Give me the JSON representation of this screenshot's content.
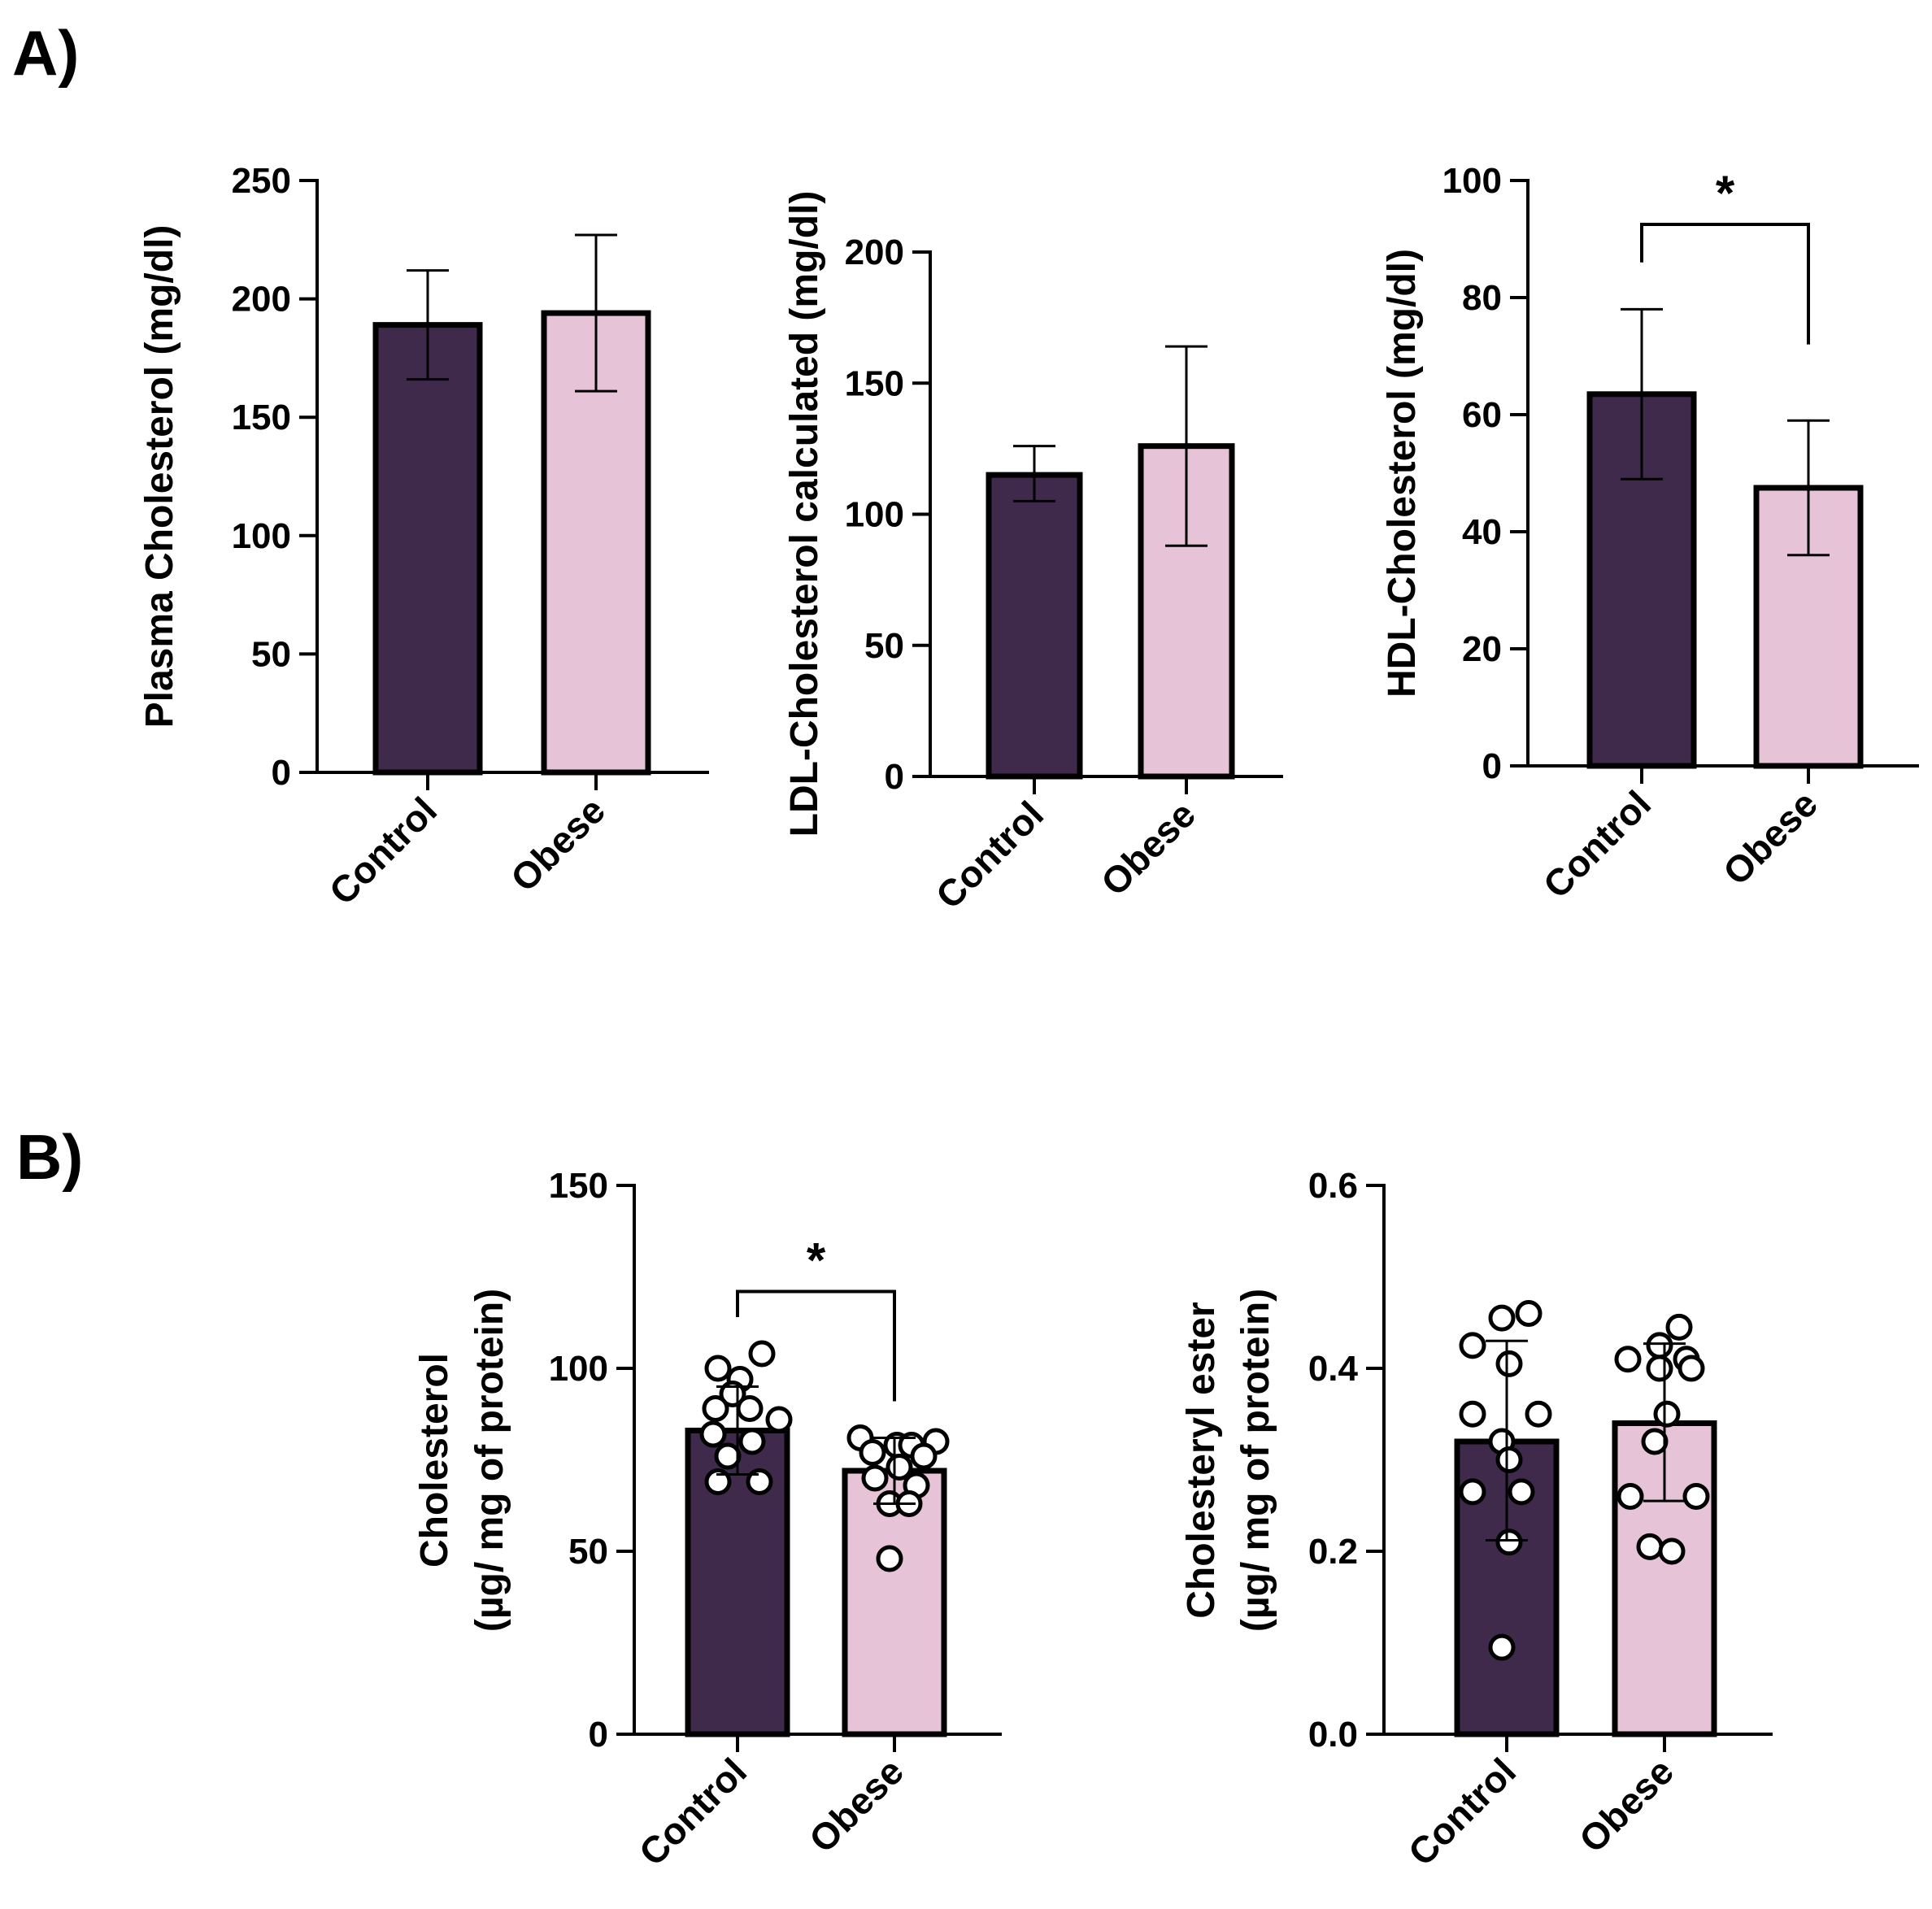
{
  "colors": {
    "control": "#3f2a4c",
    "obese": "#e6c3d6",
    "axis": "#000000",
    "point_fill": "#ffffff"
  },
  "chart_data": [
    {
      "id": "A1",
      "panel_label": "A)",
      "type": "bar",
      "categories": [
        "Control",
        "Obese"
      ],
      "values": [
        189,
        194
      ],
      "error_upper": [
        212,
        227
      ],
      "error_lower": [
        166,
        161
      ],
      "ylabel": "Plasma Cholesterol (mg/dl)",
      "ylim": [
        0,
        250
      ],
      "yticks": [
        0,
        50,
        100,
        150,
        200,
        250
      ],
      "ytick_labels": [
        "0",
        "50",
        "100",
        "150",
        "200",
        "250"
      ],
      "significance": null
    },
    {
      "id": "A2",
      "panel_label": "",
      "type": "bar",
      "categories": [
        "Control",
        "Obese"
      ],
      "values": [
        115,
        126
      ],
      "error_upper": [
        126,
        164
      ],
      "error_lower": [
        105,
        88
      ],
      "ylabel": "LDL-Cholesterol calculated (mg/dl)",
      "ylim": [
        0,
        200
      ],
      "yticks": [
        0,
        50,
        100,
        150,
        200
      ],
      "ytick_labels": [
        "0",
        "50",
        "100",
        "150",
        "200"
      ],
      "significance": null
    },
    {
      "id": "A3",
      "panel_label": "",
      "type": "bar",
      "categories": [
        "Control",
        "Obese"
      ],
      "values": [
        63.5,
        47.5
      ],
      "error_upper": [
        78,
        59
      ],
      "error_lower": [
        49,
        36
      ],
      "ylabel": "HDL-Cholesterol (mg/dl)",
      "ylim": [
        0,
        100
      ],
      "yticks": [
        0,
        20,
        40,
        60,
        80,
        100
      ],
      "ytick_labels": [
        "0",
        "20",
        "40",
        "60",
        "80",
        "100"
      ],
      "significance": {
        "symbol": "*",
        "y_level": 92.5,
        "left_drop_to": 86,
        "right_drop_to": 72
      }
    },
    {
      "id": "B1",
      "panel_label": "B)",
      "type": "bar",
      "categories": [
        "Control",
        "Obese"
      ],
      "values": [
        83,
        72
      ],
      "error_upper": [
        95,
        81
      ],
      "error_lower": [
        71,
        63
      ],
      "ylabel": "Cholesterol",
      "ylabel2": "(µg/ mg of protein)",
      "ylim": [
        0,
        150
      ],
      "yticks": [
        0,
        50,
        100,
        150
      ],
      "ytick_labels": [
        "0",
        "50",
        "100",
        "150"
      ],
      "points": [
        [
          [
            0.5,
            104
          ],
          [
            -0.4,
            100
          ],
          [
            0.05,
            97
          ],
          [
            -0.1,
            93
          ],
          [
            -0.45,
            89
          ],
          [
            0.25,
            89
          ],
          [
            0.85,
            86
          ],
          [
            -0.5,
            82
          ],
          [
            0.3,
            80
          ],
          [
            -0.2,
            76
          ],
          [
            -0.4,
            69
          ],
          [
            0.45,
            69
          ]
        ],
        [
          [
            -0.7,
            81
          ],
          [
            0.05,
            79
          ],
          [
            0.85,
            80
          ],
          [
            0.35,
            79
          ],
          [
            -0.45,
            77
          ],
          [
            0.6,
            76
          ],
          [
            0.1,
            73
          ],
          [
            -0.4,
            70
          ],
          [
            0.45,
            68
          ],
          [
            -0.1,
            63
          ],
          [
            0.3,
            63
          ],
          [
            -0.1,
            48
          ]
        ]
      ],
      "significance": {
        "symbol": "*",
        "y_level": 121,
        "left_drop_to": 114,
        "right_drop_to": 91
      }
    },
    {
      "id": "B2",
      "panel_label": "",
      "type": "bar",
      "categories": [
        "Control",
        "Obese"
      ],
      "values": [
        0.32,
        0.34
      ],
      "error_upper": [
        0.43,
        0.427
      ],
      "error_lower": [
        0.212,
        0.255
      ],
      "ylabel": "Cholesteryl ester",
      "ylabel2": "(µg/ mg of protein)",
      "ylim": [
        0,
        0.6
      ],
      "yticks": [
        0,
        0.2,
        0.4,
        0.6
      ],
      "ytick_labels": [
        "0.0",
        "0.2",
        "0.4",
        "0.6"
      ],
      "points": [
        [
          [
            -0.1,
            0.455
          ],
          [
            0.45,
            0.46
          ],
          [
            -0.7,
            0.425
          ],
          [
            0.05,
            0.405
          ],
          [
            -0.7,
            0.35
          ],
          [
            0.65,
            0.35
          ],
          [
            -0.1,
            0.32
          ],
          [
            0.05,
            0.3
          ],
          [
            -0.7,
            0.265
          ],
          [
            0.3,
            0.265
          ],
          [
            0.05,
            0.21
          ],
          [
            -0.1,
            0.095
          ]
        ],
        [
          [
            0.3,
            0.445
          ],
          [
            -0.1,
            0.425
          ],
          [
            0.45,
            0.41
          ],
          [
            -0.75,
            0.41
          ],
          [
            -0.1,
            0.4
          ],
          [
            0.55,
            0.4
          ],
          [
            0.05,
            0.35
          ],
          [
            -0.2,
            0.32
          ],
          [
            -0.7,
            0.26
          ],
          [
            0.65,
            0.26
          ],
          [
            -0.3,
            0.205
          ],
          [
            0.15,
            0.2
          ]
        ]
      ],
      "significance": null
    }
  ]
}
